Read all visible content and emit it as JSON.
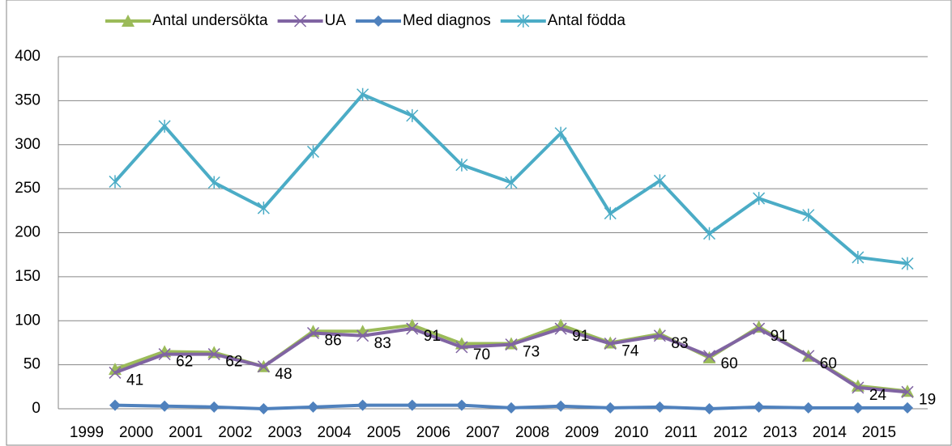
{
  "chart_data": {
    "type": "line",
    "categories": [
      "1999",
      "2000",
      "2001",
      "2002",
      "2003",
      "2004",
      "2005",
      "2006",
      "2007",
      "2008",
      "2009",
      "2010",
      "2011",
      "2012",
      "2013",
      "2014",
      "2015"
    ],
    "series": [
      {
        "name": "Antal undersökta",
        "color": "#9bbb59",
        "marker": "triangle",
        "values": [
          45,
          65,
          64,
          48,
          88,
          88,
          95,
          74,
          74,
          95,
          75,
          85,
          58,
          93,
          60,
          26,
          20
        ]
      },
      {
        "name": "UA",
        "color": "#8064a2",
        "marker": "x",
        "values": [
          41,
          62,
          62,
          48,
          86,
          83,
          91,
          70,
          73,
          91,
          74,
          83,
          60,
          91,
          60,
          24,
          19
        ],
        "data_labels": true
      },
      {
        "name": "Med diagnos",
        "color": "#4f81bd",
        "marker": "diamond",
        "values": [
          4,
          3,
          2,
          0,
          2,
          4,
          4,
          4,
          1,
          3,
          1,
          2,
          0,
          2,
          1,
          1,
          1
        ]
      },
      {
        "name": "Antal födda",
        "color": "#4bacc6",
        "marker": "star",
        "values": [
          258,
          321,
          257,
          228,
          292,
          357,
          333,
          277,
          257,
          313,
          222,
          259,
          199,
          239,
          220,
          172,
          165
        ]
      }
    ],
    "ylim": [
      0,
      400
    ],
    "yticks": [
      0,
      50,
      100,
      150,
      200,
      250,
      300,
      350,
      400
    ],
    "grid": true,
    "legend": "top"
  }
}
